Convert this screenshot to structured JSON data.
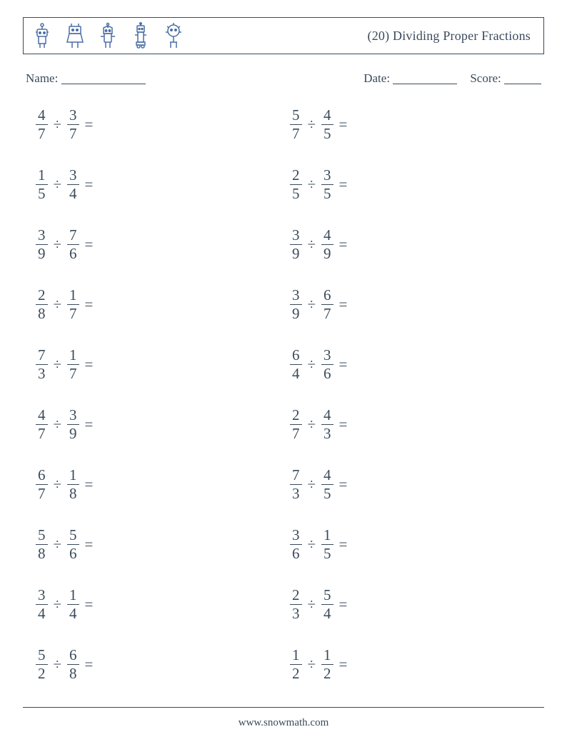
{
  "colors": {
    "text": "#3a4a5a",
    "border": "#3a4a5a",
    "background": "#ffffff",
    "robot": "#4a6fa5"
  },
  "header": {
    "title": "(20) Dividing Proper Fractions",
    "robot_count": 5
  },
  "info": {
    "name_label": "Name:",
    "date_label": "Date:",
    "score_label": "Score:",
    "name_line_width": 118,
    "date_line_width": 90,
    "score_line_width": 52
  },
  "problems": {
    "operator": "÷",
    "equals": "=",
    "layout": {
      "columns": 2,
      "rows": 10,
      "row_gap": 36
    },
    "font_size": 21,
    "items": [
      {
        "a_num": "4",
        "a_den": "7",
        "b_num": "3",
        "b_den": "7"
      },
      {
        "a_num": "5",
        "a_den": "7",
        "b_num": "4",
        "b_den": "5"
      },
      {
        "a_num": "1",
        "a_den": "5",
        "b_num": "3",
        "b_den": "4"
      },
      {
        "a_num": "2",
        "a_den": "5",
        "b_num": "3",
        "b_den": "5"
      },
      {
        "a_num": "3",
        "a_den": "9",
        "b_num": "7",
        "b_den": "6"
      },
      {
        "a_num": "3",
        "a_den": "9",
        "b_num": "4",
        "b_den": "9"
      },
      {
        "a_num": "2",
        "a_den": "8",
        "b_num": "1",
        "b_den": "7"
      },
      {
        "a_num": "3",
        "a_den": "9",
        "b_num": "6",
        "b_den": "7"
      },
      {
        "a_num": "7",
        "a_den": "3",
        "b_num": "1",
        "b_den": "7"
      },
      {
        "a_num": "6",
        "a_den": "4",
        "b_num": "3",
        "b_den": "6"
      },
      {
        "a_num": "4",
        "a_den": "7",
        "b_num": "3",
        "b_den": "9"
      },
      {
        "a_num": "2",
        "a_den": "7",
        "b_num": "4",
        "b_den": "3"
      },
      {
        "a_num": "6",
        "a_den": "7",
        "b_num": "1",
        "b_den": "8"
      },
      {
        "a_num": "7",
        "a_den": "3",
        "b_num": "4",
        "b_den": "5"
      },
      {
        "a_num": "5",
        "a_den": "8",
        "b_num": "5",
        "b_den": "6"
      },
      {
        "a_num": "3",
        "a_den": "6",
        "b_num": "1",
        "b_den": "5"
      },
      {
        "a_num": "3",
        "a_den": "4",
        "b_num": "1",
        "b_den": "4"
      },
      {
        "a_num": "2",
        "a_den": "3",
        "b_num": "5",
        "b_den": "4"
      },
      {
        "a_num": "5",
        "a_den": "2",
        "b_num": "6",
        "b_den": "8"
      },
      {
        "a_num": "1",
        "a_den": "2",
        "b_num": "1",
        "b_den": "2"
      }
    ]
  },
  "footer": {
    "url": "www.snowmath.com"
  }
}
